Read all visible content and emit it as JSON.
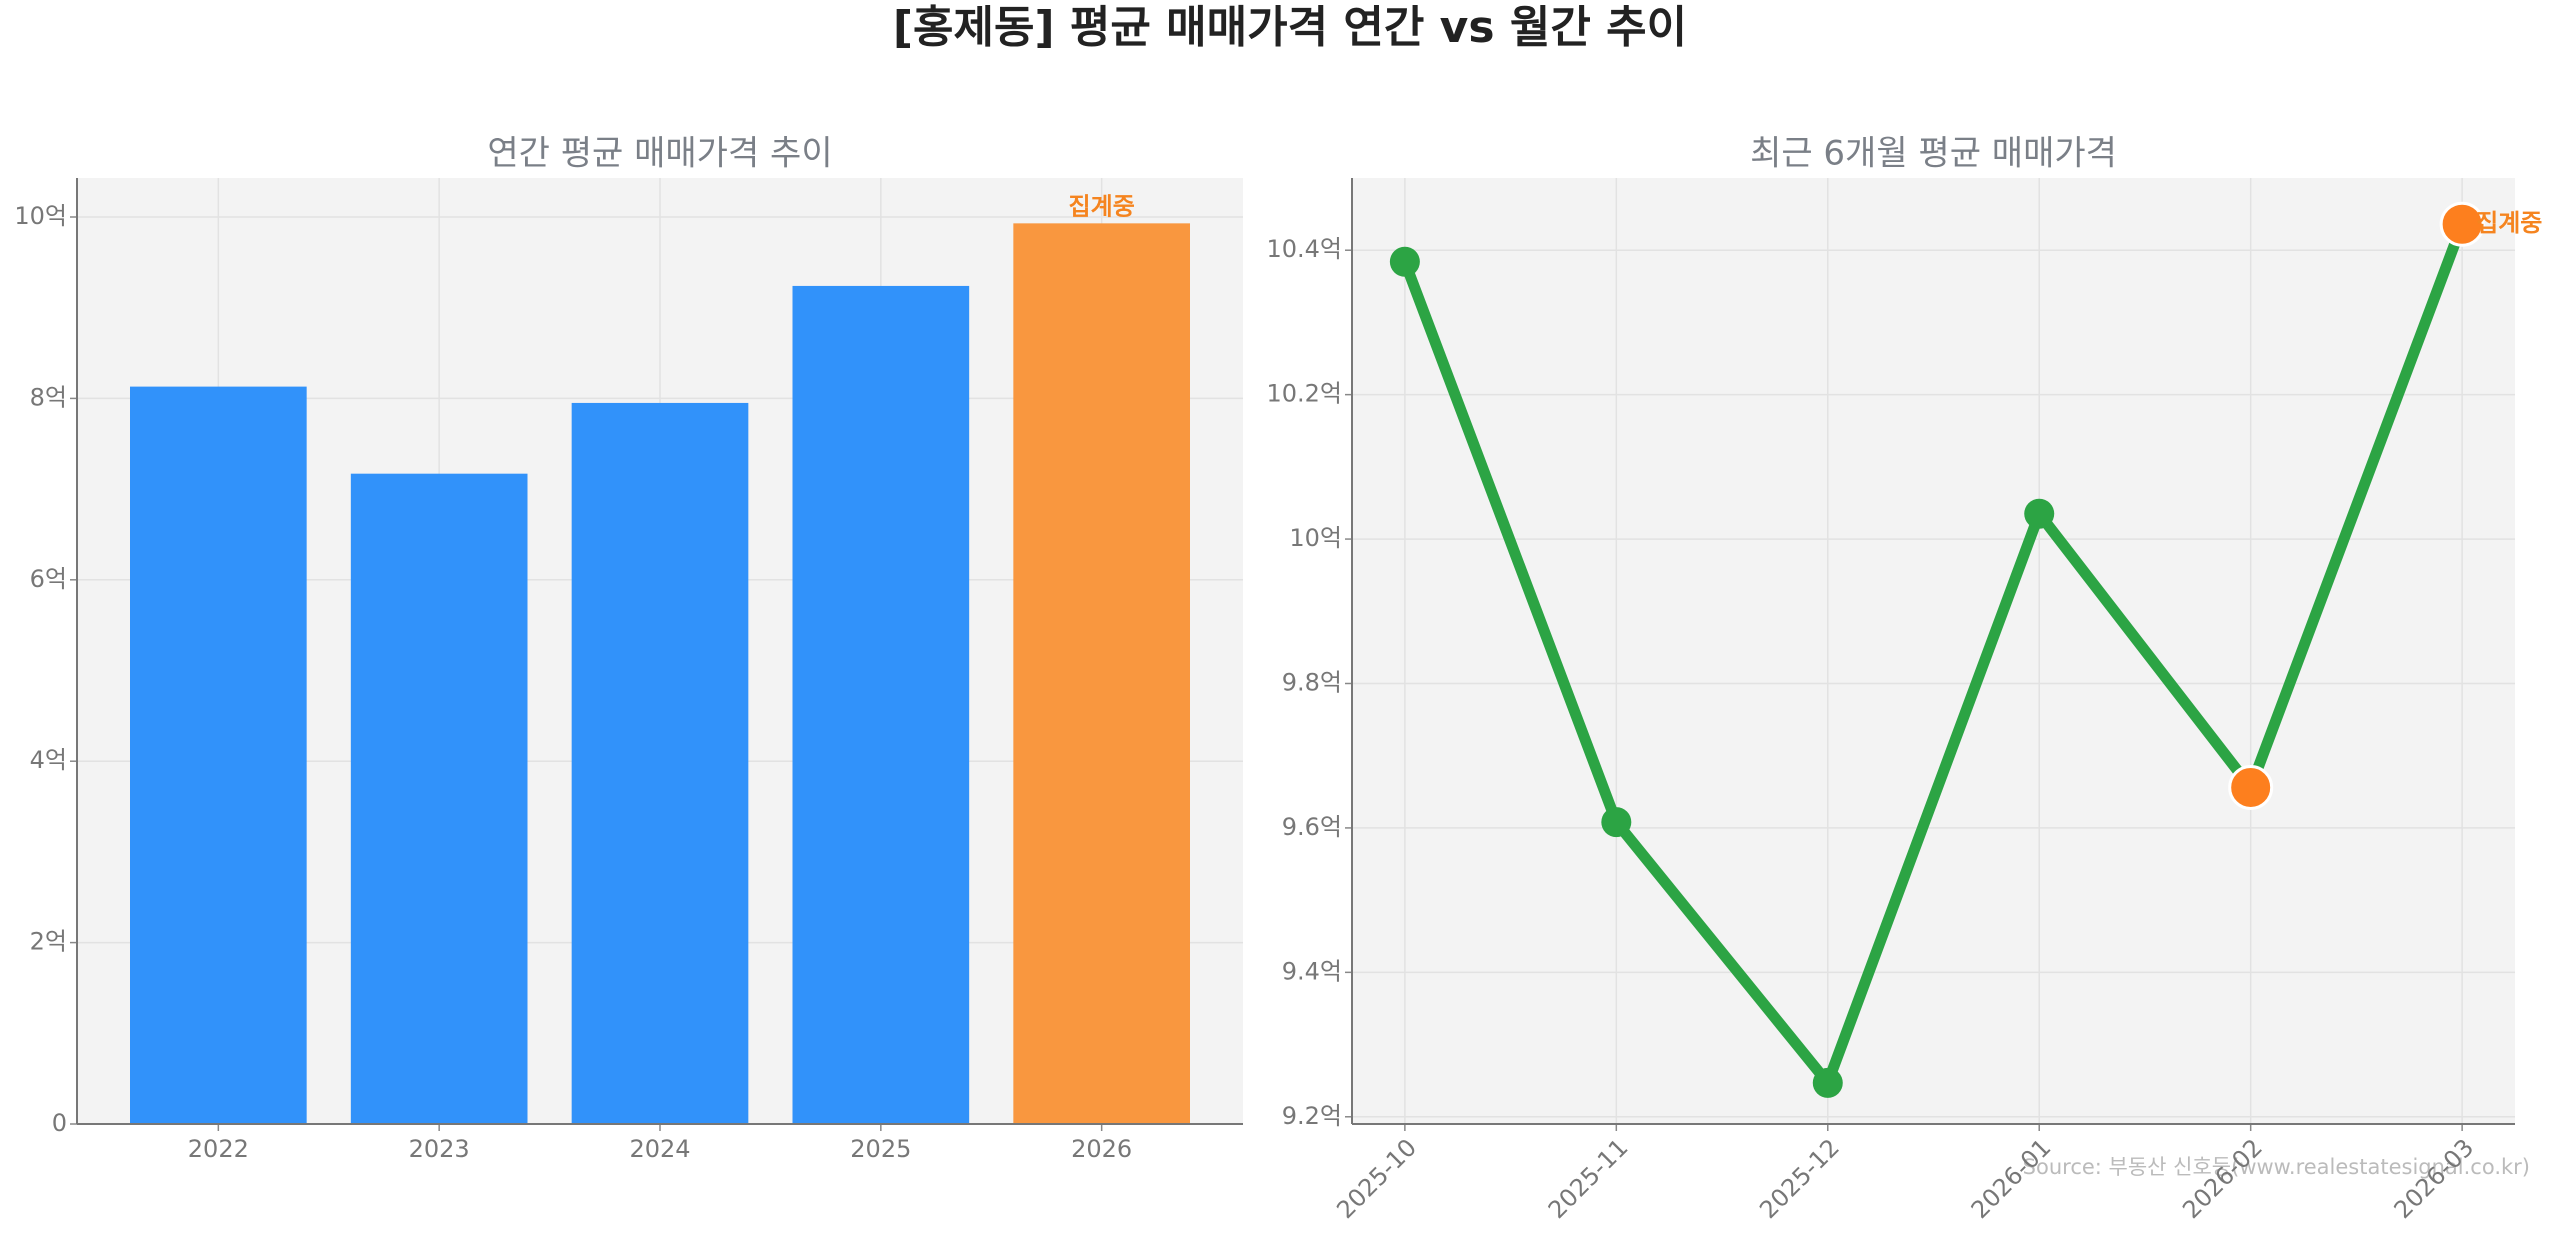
{
  "title": "[홍제동] 평균 매매가격 연간 vs 월간 추이",
  "source": "Source: 부동산 신호등(www.realestatesignal.co.kr)",
  "chart_data": [
    {
      "type": "bar",
      "title": "연간 평균 매매가격 추이",
      "categories": [
        "2022",
        "2023",
        "2024",
        "2025",
        "2026"
      ],
      "values": [
        8.13,
        7.17,
        7.95,
        9.24,
        9.93
      ],
      "colors": [
        "#3192fa",
        "#3192fa",
        "#3192fa",
        "#3192fa",
        "#f9973f"
      ],
      "annotation": "집계중",
      "annotation_color": "#f5841f",
      "ylim": [
        0,
        10.43
      ],
      "yticks": [
        0,
        {
          "value": 2,
          "label": "2억"
        },
        {
          "value": 4,
          "label": "4억"
        },
        {
          "value": 6,
          "label": "6억"
        },
        {
          "value": 8,
          "label": "8억"
        },
        {
          "value": 10,
          "label": "10억"
        }
      ],
      "grid": true
    },
    {
      "type": "line",
      "title": "최근 6개월 평균 매매가격",
      "categories": [
        "2025-10",
        "2025-11",
        "2025-12",
        "2026-01",
        "2026-02",
        "2026-03"
      ],
      "series": [
        {
          "color": "#2ca444",
          "values": [
            10.384,
            9.608,
            9.247,
            10.035,
            9.656,
            10.436
          ],
          "marker_colors": [
            "#2ca444",
            "#2ca444",
            "#2ca444",
            "#2ca444",
            "#fd7f1e",
            "#fd7f1e"
          ]
        }
      ],
      "annotation": "집계중",
      "annotation_color": "#f5841f",
      "ylim": [
        9.19,
        10.5
      ],
      "yticks": [
        {
          "value": 9.2,
          "label": "9.2억"
        },
        {
          "value": 9.4,
          "label": "9.4억"
        },
        {
          "value": 9.6,
          "label": "9.6억"
        },
        {
          "value": 9.8,
          "label": "9.8억"
        },
        {
          "value": 10,
          "label": "10억"
        },
        {
          "value": 10.2,
          "label": "10.2억"
        },
        {
          "value": 10.4,
          "label": "10.4억"
        }
      ],
      "grid": true
    }
  ]
}
